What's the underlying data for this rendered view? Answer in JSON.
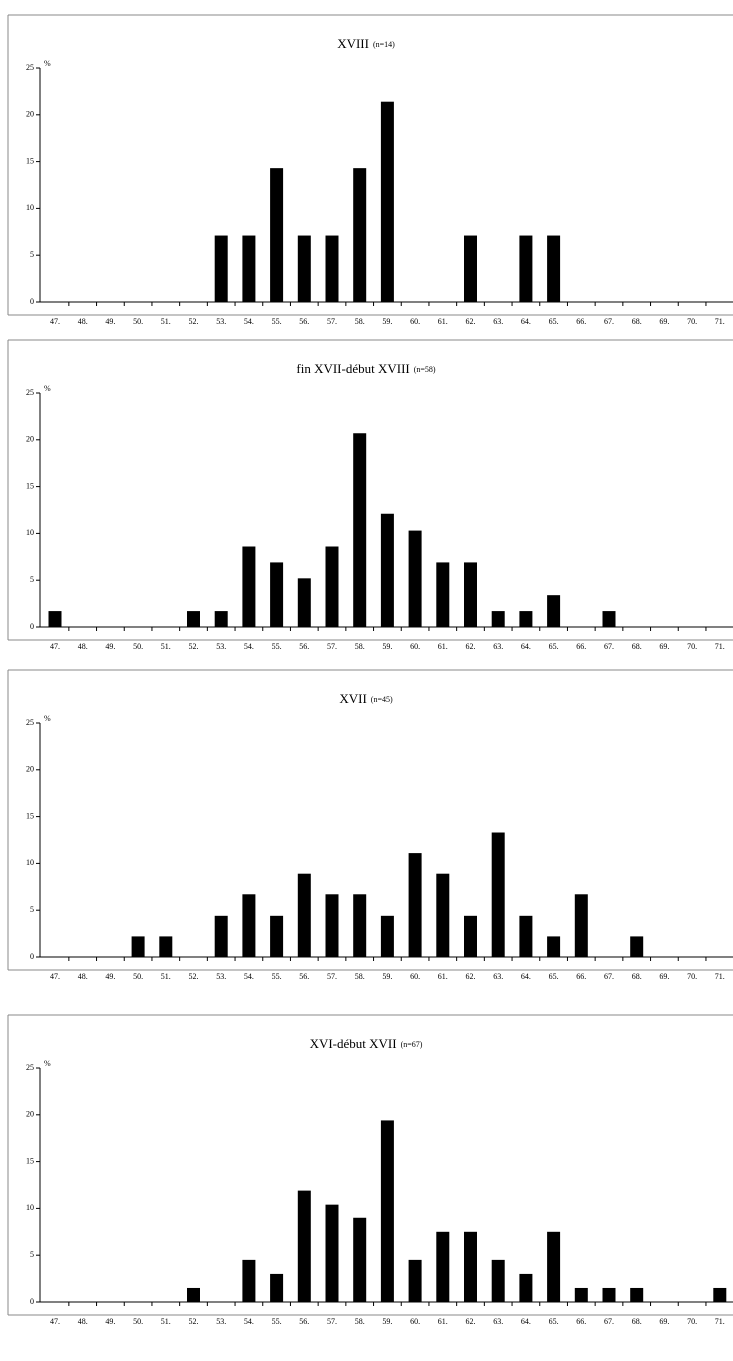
{
  "chart_data": [
    {
      "type": "bar",
      "title": "XVIII",
      "subtitle": "(n=14)",
      "y_label": "%",
      "color": "#000000",
      "categories": [
        "47.",
        "48.",
        "49.",
        "50.",
        "51.",
        "52.",
        "53.",
        "54.",
        "55.",
        "56.",
        "57.",
        "58.",
        "59.",
        "60.",
        "61.",
        "62.",
        "63.",
        "64.",
        "65.",
        "66.",
        "67.",
        "68.",
        "69.",
        "70.",
        "71."
      ],
      "values": [
        0,
        0,
        0,
        0,
        0,
        0,
        7.1,
        7.1,
        14.3,
        7.1,
        7.1,
        14.3,
        21.4,
        0,
        0,
        7.1,
        0,
        7.1,
        7.1,
        0,
        0,
        0,
        0,
        0,
        0
      ],
      "ylim": [
        0,
        25
      ],
      "yticks": [
        0,
        5,
        10,
        15,
        20,
        25
      ]
    },
    {
      "type": "bar",
      "title": "fin XVII-début XVIII",
      "subtitle": "(n=58)",
      "y_label": "%",
      "color": "#000000",
      "categories": [
        "47.",
        "48.",
        "49.",
        "50.",
        "51.",
        "52.",
        "53.",
        "54.",
        "55.",
        "56.",
        "57.",
        "58.",
        "59.",
        "60.",
        "61.",
        "62.",
        "63.",
        "64.",
        "65.",
        "66.",
        "67.",
        "68.",
        "69.",
        "70.",
        "71."
      ],
      "values": [
        1.7,
        0,
        0,
        0,
        0,
        1.7,
        1.7,
        8.6,
        6.9,
        5.2,
        8.6,
        20.7,
        12.1,
        10.3,
        6.9,
        6.9,
        1.7,
        1.7,
        3.4,
        0,
        1.7,
        0,
        0,
        0,
        0
      ],
      "ylim": [
        0,
        25
      ],
      "yticks": [
        0,
        5,
        10,
        15,
        20,
        25
      ]
    },
    {
      "type": "bar",
      "title": "XVII",
      "subtitle": "(n=45)",
      "y_label": "%",
      "color": "#000000",
      "categories": [
        "47.",
        "48.",
        "49.",
        "50.",
        "51.",
        "52.",
        "53.",
        "54.",
        "55.",
        "56.",
        "57.",
        "58.",
        "59.",
        "60.",
        "61.",
        "62.",
        "63.",
        "64.",
        "65.",
        "66.",
        "67.",
        "68.",
        "69.",
        "70.",
        "71."
      ],
      "values": [
        0,
        0,
        0,
        2.2,
        2.2,
        0,
        4.4,
        6.7,
        4.4,
        8.9,
        6.7,
        6.7,
        4.4,
        11.1,
        8.9,
        4.4,
        13.3,
        4.4,
        2.2,
        6.7,
        0,
        2.2,
        0,
        0,
        0
      ],
      "ylim": [
        0,
        25
      ],
      "yticks": [
        0,
        5,
        10,
        15,
        20,
        25
      ]
    },
    {
      "type": "bar",
      "title": "XVI-début XVII",
      "subtitle": "(n=67)",
      "y_label": "%",
      "color": "#000000",
      "categories": [
        "47.",
        "48.",
        "49.",
        "50.",
        "51.",
        "52.",
        "53.",
        "54.",
        "55.",
        "56.",
        "57.",
        "58.",
        "59.",
        "60.",
        "61.",
        "62.",
        "63.",
        "64.",
        "65.",
        "66.",
        "67.",
        "68.",
        "69.",
        "70.",
        "71."
      ],
      "values": [
        0,
        0,
        0,
        0,
        0,
        1.5,
        0,
        4.5,
        3.0,
        11.9,
        10.4,
        9.0,
        19.4,
        4.5,
        7.5,
        7.5,
        4.5,
        3.0,
        7.5,
        1.5,
        1.5,
        1.5,
        0,
        0,
        1.5
      ],
      "ylim": [
        0,
        25
      ],
      "yticks": [
        0,
        5,
        10,
        15,
        20,
        25
      ]
    }
  ]
}
